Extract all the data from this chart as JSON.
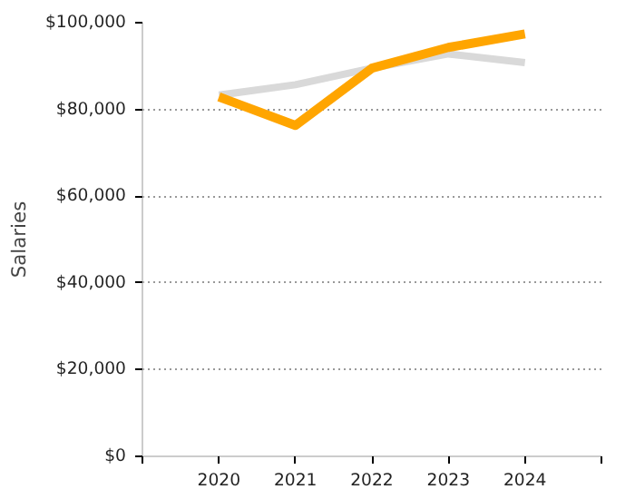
{
  "chart_data": {
    "type": "line",
    "ylabel": "Salaries",
    "x": [
      2020,
      2021,
      2022,
      2023,
      2024
    ],
    "series": [
      {
        "color": "#d9d9d9",
        "values": [
          83300,
          85700,
          89500,
          92800,
          90800
        ]
      },
      {
        "color": "#ffa500",
        "values": [
          82900,
          76300,
          89500,
          94300,
          97400
        ]
      }
    ],
    "xlim": [
      2019,
      2025
    ],
    "xticks": [
      {
        "value": 2019,
        "label": null
      },
      2020,
      2021,
      2022,
      2023,
      2024,
      {
        "value": 2025,
        "label": null
      }
    ],
    "ylim": [
      0,
      100000
    ],
    "yticks": [
      {
        "value": 0,
        "label": "$0"
      },
      {
        "value": 20000,
        "label": "$20,000"
      },
      {
        "value": 40000,
        "label": "$40,000"
      },
      {
        "value": 60000,
        "label": "$60,000"
      },
      {
        "value": 80000,
        "label": "$80,000"
      },
      {
        "value": 100000,
        "label": "$100,000"
      }
    ],
    "grid": "y",
    "marker": "none",
    "line_style": "solid"
  }
}
